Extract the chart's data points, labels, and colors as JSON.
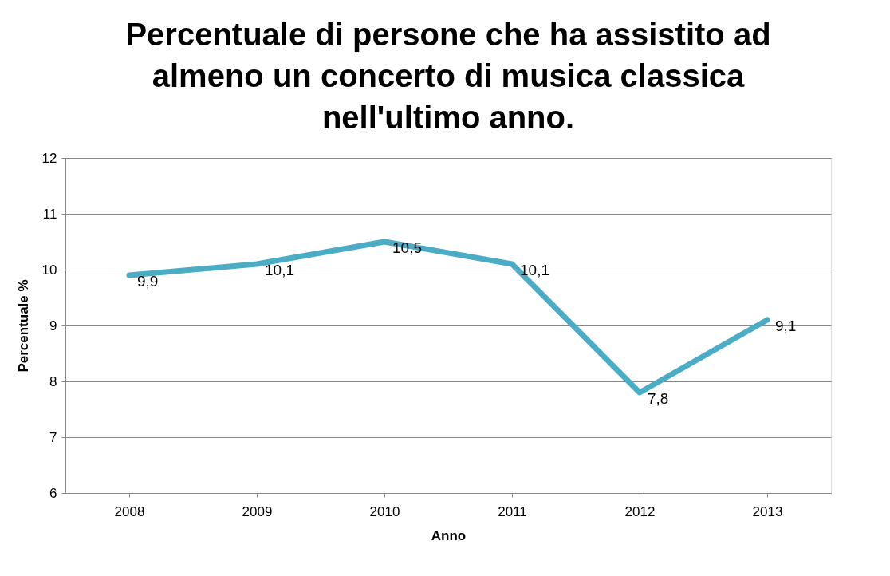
{
  "chart_data": {
    "type": "line",
    "title": "Percentuale di persone che ha assistito ad almeno un concerto di musica classica nell'ultimo anno.",
    "xlabel": "Anno",
    "ylabel": "Percentuale %",
    "categories": [
      "2008",
      "2009",
      "2010",
      "2011",
      "2012",
      "2013"
    ],
    "series": [
      {
        "color": "#4bacc6",
        "values": [
          9.9,
          10.1,
          10.5,
          10.1,
          7.8,
          9.1
        ],
        "value_labels": [
          "9,9",
          "10,1",
          "10,5",
          "10,1",
          "7,8",
          "9,1"
        ]
      }
    ],
    "ylim": [
      6,
      12
    ],
    "yticks": [
      6,
      7,
      8,
      9,
      10,
      11,
      12
    ],
    "grid": "y",
    "line_style": "solid"
  }
}
